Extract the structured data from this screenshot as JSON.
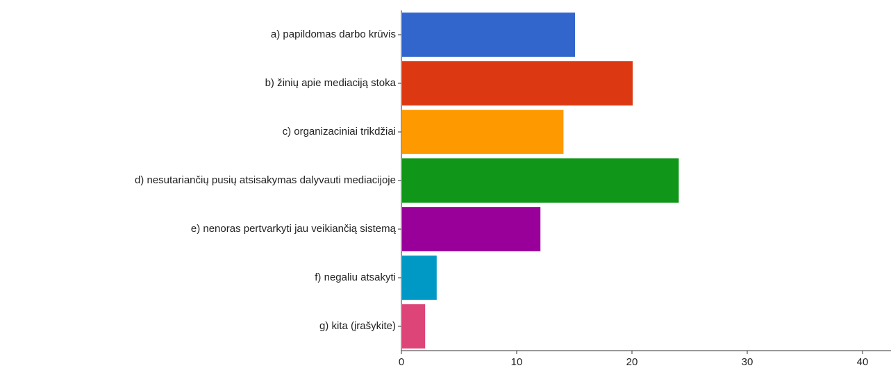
{
  "chart_data": {
    "type": "bar",
    "orientation": "horizontal",
    "categories": [
      "a) papildomas darbo krūvis",
      "b) žinių apie mediaciją stoka",
      "c) organizaciniai trikdžiai",
      "d) nesutariančių pusių atsisakymas dalyvauti mediacijoje",
      "e) nenoras pertvarkyti jau veikiančią sistemą",
      "f) negaliu atsakyti",
      "g) kita (įrašykite)"
    ],
    "values": [
      15,
      20,
      14,
      24,
      12,
      3,
      2
    ],
    "colors": [
      "#3366cc",
      "#dc3912",
      "#ff9900",
      "#109618",
      "#990099",
      "#0099c6",
      "#dd4477"
    ],
    "xlim": [
      0,
      40
    ],
    "xticks": [
      0,
      10,
      20,
      30,
      40
    ],
    "grid": false
  }
}
